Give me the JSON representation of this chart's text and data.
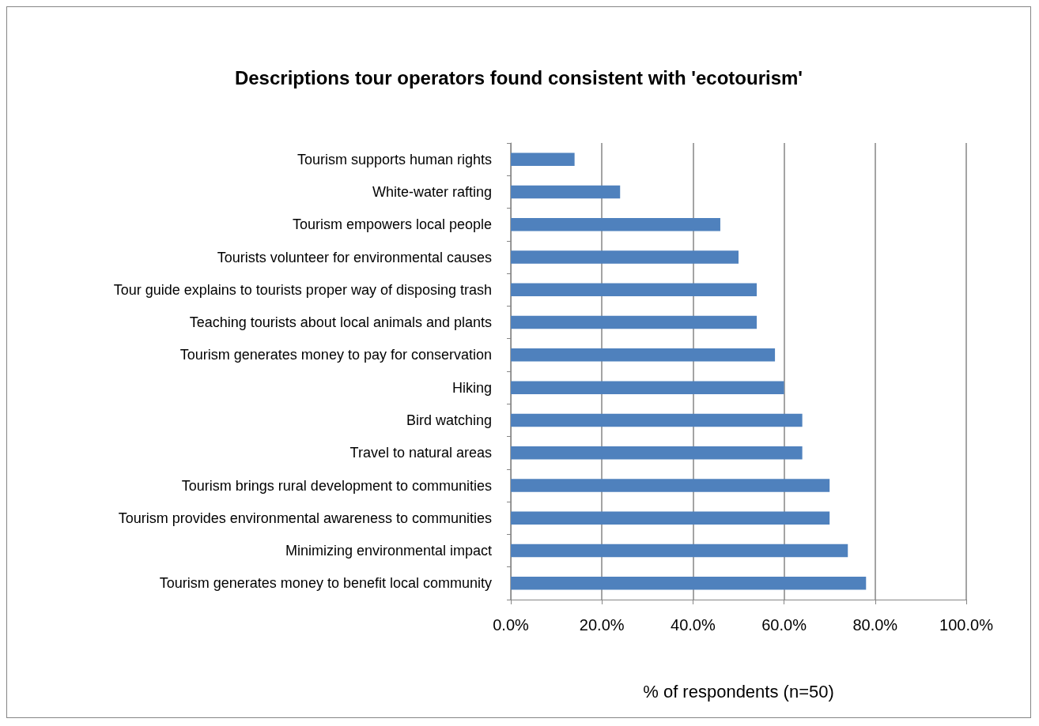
{
  "chart_data": {
    "type": "bar",
    "orientation": "horizontal",
    "title": "Descriptions tour operators found consistent with 'ecotourism'",
    "xlabel": "% of respondents (n=50)",
    "categories": [
      "Tourism supports human rights",
      "White-water rafting",
      "Tourism empowers local people",
      "Tourists volunteer for environmental causes",
      "Tour guide explains to tourists proper way of disposing trash",
      "Teaching tourists about local animals and plants",
      "Tourism generates money to pay for conservation",
      "Hiking",
      "Bird watching",
      "Travel to natural areas",
      "Tourism brings rural development to communities",
      "Tourism provides environmental awareness to communities",
      "Minimizing environmental impact",
      "Tourism generates money to benefit local community"
    ],
    "values": [
      14,
      24,
      46,
      50,
      54,
      54,
      58,
      60,
      64,
      64,
      70,
      70,
      74,
      78
    ],
    "color": "#4f81bd",
    "xlim": [
      0,
      100
    ],
    "xticks": [
      {
        "value": 0,
        "label": "0.0%"
      },
      {
        "value": 20,
        "label": "20.0%"
      },
      {
        "value": 40,
        "label": "40.0%"
      },
      {
        "value": 60,
        "label": "60.0%"
      },
      {
        "value": 80,
        "label": "80.0%"
      },
      {
        "value": 100,
        "label": "100.0%"
      }
    ],
    "grid": "x"
  }
}
